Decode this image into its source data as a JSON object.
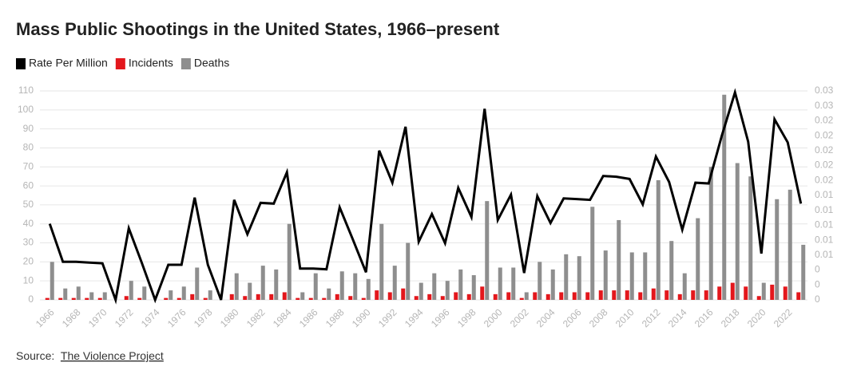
{
  "chart_data": {
    "type": "combo",
    "title": "Mass Public Shootings in the United States, 1966–present",
    "categories": [
      "1966",
      null,
      "1968",
      null,
      "1970",
      null,
      "1972",
      null,
      "1974",
      null,
      "1976",
      null,
      "1978",
      null,
      "1980",
      null,
      "1982",
      null,
      "1984",
      null,
      "1986",
      null,
      "1988",
      null,
      "1990",
      null,
      "1992",
      null,
      "1994",
      null,
      "1996",
      null,
      "1998",
      null,
      "2000",
      null,
      "2002",
      null,
      "2004",
      null,
      "2006",
      null,
      "2008",
      null,
      "2010",
      null,
      "2012",
      null,
      "2014",
      null,
      "2016",
      null,
      "2018",
      null,
      "2020",
      null,
      "2022",
      null
    ],
    "series": [
      {
        "name": "Rate Per Million",
        "type": "line",
        "axis": "y2",
        "color": "#000000",
        "values": [
          0.0102,
          0.0051,
          0.0051,
          0.005,
          0.0049,
          0,
          0.0096,
          0.0049,
          0,
          0.0047,
          0.0047,
          0.0137,
          0.0047,
          0,
          0.0134,
          0.0088,
          0.013,
          0.0129,
          0.0171,
          0.0042,
          0.0042,
          0.0041,
          0.0124,
          0.0081,
          0.0037,
          0.02,
          0.0157,
          0.0232,
          0.0078,
          0.0115,
          0.0076,
          0.015,
          0.0111,
          0.0256,
          0.0107,
          0.0141,
          0.0036,
          0.0139,
          0.0103,
          0.0136,
          0.0135,
          0.0134,
          0.0166,
          0.0165,
          0.0162,
          0.0128,
          0.0192,
          0.0158,
          0.0094,
          0.0157,
          0.0156,
          0.022,
          0.0278,
          0.0212,
          0.0062,
          0.0242,
          0.0211,
          0.0129
        ]
      },
      {
        "name": "Incidents",
        "type": "bar",
        "color": "#e3171c",
        "values": [
          1,
          1,
          1,
          1,
          1,
          0,
          2,
          1,
          0,
          1,
          1,
          3,
          1,
          0,
          3,
          2,
          3,
          3,
          4,
          1,
          1,
          1,
          3,
          2,
          1,
          5,
          4,
          6,
          2,
          3,
          2,
          4,
          3,
          7,
          3,
          4,
          1,
          4,
          3,
          4,
          4,
          4,
          5,
          5,
          5,
          4,
          6,
          5,
          3,
          5,
          5,
          7,
          9,
          7,
          2,
          8,
          7,
          4
        ]
      },
      {
        "name": "Deaths",
        "type": "bar",
        "color": "#8e8e8e",
        "values": [
          20,
          6,
          7,
          4,
          4,
          0,
          10,
          7,
          0,
          5,
          7,
          17,
          5,
          0,
          14,
          9,
          18,
          16,
          40,
          4,
          14,
          6,
          15,
          14,
          11,
          40,
          18,
          30,
          9,
          14,
          10,
          16,
          13,
          52,
          17,
          17,
          4,
          20,
          16,
          24,
          23,
          49,
          26,
          42,
          25,
          25,
          63,
          31,
          14,
          43,
          70,
          108,
          72,
          65,
          9,
          53,
          58,
          29
        ]
      }
    ],
    "ylim": [
      0,
      110
    ],
    "yticks": [
      0,
      10,
      20,
      30,
      40,
      50,
      60,
      70,
      80,
      90,
      100,
      110
    ],
    "y2lim": [
      0,
      0.028
    ],
    "y2ticks": [
      0,
      {
        "value": 0.002,
        "label": "0"
      },
      {
        "value": 0.004,
        "label": "0"
      },
      {
        "value": 0.006,
        "label": "0.01"
      },
      {
        "value": 0.008,
        "label": "0.01"
      },
      0.01,
      {
        "value": 0.012,
        "label": "0.01"
      },
      {
        "value": 0.014,
        "label": "0.01"
      },
      {
        "value": 0.016,
        "label": "0.02"
      },
      {
        "value": 0.018,
        "label": "0.02"
      },
      0.02,
      {
        "value": 0.022,
        "label": "0.02"
      },
      {
        "value": 0.024,
        "label": "0.02"
      },
      {
        "value": 0.026,
        "label": "0.03"
      },
      {
        "value": 0.028,
        "label": "0.03"
      }
    ],
    "grid": true,
    "legend": "top-left",
    "source": "Source:",
    "source_link": "The Violence Project"
  }
}
